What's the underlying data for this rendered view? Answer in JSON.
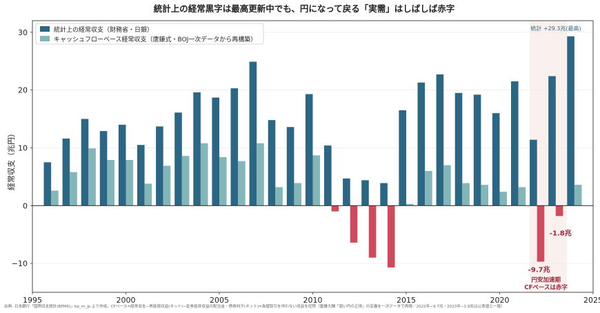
{
  "chart_data": {
    "type": "bar",
    "title": "統計上の経常黒字は最高更新中でも、円になって戻る「実需」はしばしば赤字",
    "ylabel": "経常収支（兆円）",
    "xlabel": "",
    "xlim": [
      1995,
      2025
    ],
    "ylim": [
      -15,
      32
    ],
    "x_ticks": [
      "1995",
      "2000",
      "2005",
      "2010",
      "2015",
      "2020",
      "2025"
    ],
    "y_ticks": [
      "−10",
      "0",
      "10",
      "20",
      "30"
    ],
    "legend_position": "top-left",
    "grid": true,
    "categories": [
      1996,
      1997,
      1998,
      1999,
      2000,
      2001,
      2002,
      2003,
      2004,
      2005,
      2006,
      2007,
      2008,
      2009,
      2010,
      2011,
      2012,
      2013,
      2014,
      2015,
      2016,
      2017,
      2018,
      2019,
      2020,
      2021,
      2022,
      2023,
      2024
    ],
    "series": [
      {
        "name": "統計上の経常収支（財務省・日銀）",
        "color": "#2b6785",
        "values": [
          7.5,
          11.6,
          15.0,
          12.9,
          14.0,
          10.5,
          13.7,
          16.1,
          19.6,
          18.7,
          20.3,
          24.9,
          14.8,
          13.6,
          19.3,
          10.4,
          4.7,
          4.4,
          3.9,
          16.5,
          21.3,
          22.7,
          19.5,
          19.2,
          16.0,
          21.5,
          11.4,
          22.4,
          29.3
        ]
      },
      {
        "name": "キャッシュフローベース経常収支（唐鎌式・BOJ一次データから再構築）",
        "color": "#83b6b8",
        "negative_color": "#d04a5e",
        "values": [
          2.6,
          5.8,
          9.9,
          7.9,
          7.9,
          3.8,
          6.9,
          8.6,
          10.8,
          8.4,
          7.7,
          10.8,
          3.2,
          3.9,
          8.7,
          -1.0,
          -6.4,
          -9.0,
          -10.7,
          0.3,
          6.0,
          7.0,
          3.9,
          3.6,
          2.4,
          3.2,
          -9.7,
          -1.8,
          3.6
        ]
      }
    ],
    "highlight_region": {
      "x_from": 2021.6,
      "x_to": 2023.6
    },
    "annotations": {
      "peak": "統計 +29.3兆(最高)",
      "val_2023": "-1.8兆",
      "val_2022": "-9.7兆",
      "note_line1": "円安加速期",
      "note_line2": "CFベースは赤字"
    },
    "source": "出典: 日本銀行「国際収支統計(BPM6)」bp_m_jp より作成。CFベース=経常収支−再投資収益(ネット)−証券投資収益の配当金・債券利子(ネット)=為替取引を伴わない収益を控除（唐鎌大輔「弱い円の正体」の定義を一次データで再現／2022年−9.7兆・2023年−1.8兆は公表値と一致）"
  }
}
